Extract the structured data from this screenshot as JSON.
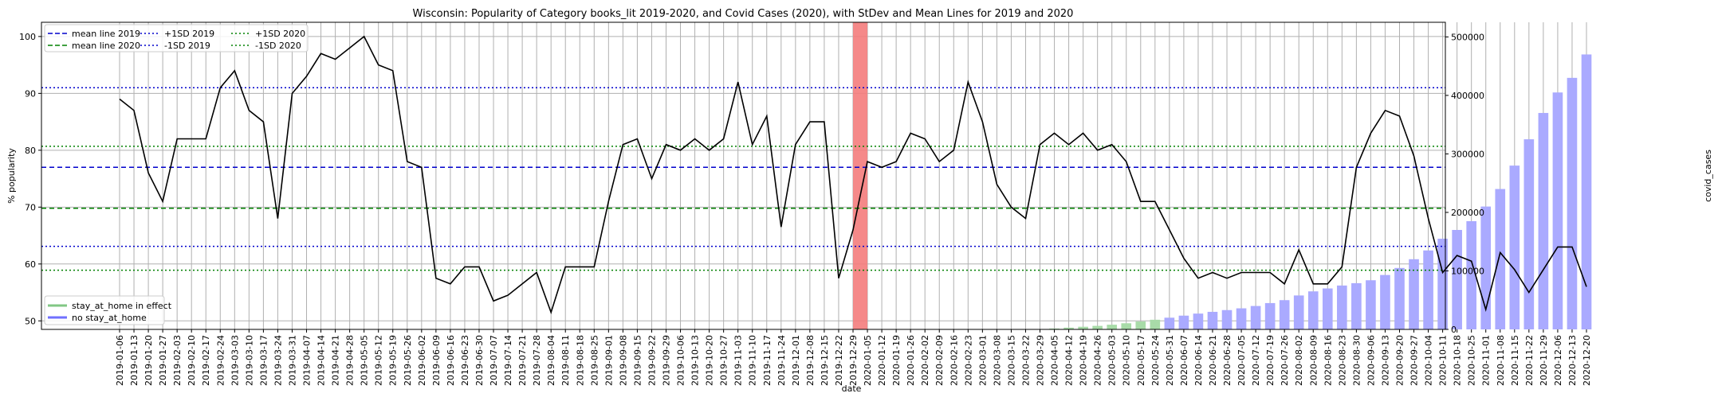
{
  "chart_data": {
    "type": "line+bar",
    "title": "Wisconsin: Popularity of Category books_lit 2019-2020, and Covid Cases (2020), with StDev and Mean Lines for 2019 and 2020",
    "xlabel": "date",
    "ylabel": "% popularity",
    "y2label": "covid_cases",
    "ylim": [
      48.5,
      102.5
    ],
    "y2lim": [
      0,
      525000
    ],
    "yticks": [
      50,
      60,
      70,
      80,
      90,
      100
    ],
    "y2ticks": [
      0,
      100000,
      200000,
      300000,
      400000,
      500000
    ],
    "grid": true,
    "dates": [
      "2019-01-06",
      "2019-01-13",
      "2019-01-20",
      "2019-01-27",
      "2019-02-03",
      "2019-02-10",
      "2019-02-17",
      "2019-02-24",
      "2019-03-03",
      "2019-03-10",
      "2019-03-17",
      "2019-03-24",
      "2019-03-31",
      "2019-04-07",
      "2019-04-14",
      "2019-04-21",
      "2019-04-28",
      "2019-05-05",
      "2019-05-12",
      "2019-05-19",
      "2019-05-26",
      "2019-06-02",
      "2019-06-09",
      "2019-06-16",
      "2019-06-23",
      "2019-06-30",
      "2019-07-07",
      "2019-07-14",
      "2019-07-21",
      "2019-07-28",
      "2019-08-04",
      "2019-08-11",
      "2019-08-18",
      "2019-08-25",
      "2019-09-01",
      "2019-09-08",
      "2019-09-15",
      "2019-09-22",
      "2019-09-29",
      "2019-10-06",
      "2019-10-13",
      "2019-10-20",
      "2019-10-27",
      "2019-11-03",
      "2019-11-10",
      "2019-11-17",
      "2019-11-24",
      "2019-12-01",
      "2019-12-08",
      "2019-12-15",
      "2019-12-22",
      "2019-12-29",
      "2020-01-05",
      "2020-01-12",
      "2020-01-19",
      "2020-01-26",
      "2020-02-02",
      "2020-02-09",
      "2020-02-16",
      "2020-02-23",
      "2020-03-01",
      "2020-03-08",
      "2020-03-15",
      "2020-03-22",
      "2020-03-29",
      "2020-04-05",
      "2020-04-12",
      "2020-04-19",
      "2020-04-26",
      "2020-05-03",
      "2020-05-10",
      "2020-05-17",
      "2020-05-24",
      "2020-05-31",
      "2020-06-07",
      "2020-06-14",
      "2020-06-21",
      "2020-06-28",
      "2020-07-05",
      "2020-07-12",
      "2020-07-19",
      "2020-07-26",
      "2020-08-02",
      "2020-08-09",
      "2020-08-16",
      "2020-08-23",
      "2020-08-30",
      "2020-09-06",
      "2020-09-13",
      "2020-09-20",
      "2020-09-27",
      "2020-10-04",
      "2020-10-11",
      "2020-10-18",
      "2020-10-25",
      "2020-11-01",
      "2020-11-08",
      "2020-11-15",
      "2020-11-22",
      "2020-11-29",
      "2020-12-06",
      "2020-12-13",
      "2020-12-20"
    ],
    "popularity": [
      89,
      87,
      76,
      71,
      82,
      82,
      82,
      91,
      94,
      87,
      85,
      68,
      90,
      93,
      97,
      96,
      98,
      100,
      95,
      94,
      78,
      77,
      57.5,
      56.5,
      59.5,
      59.5,
      53.5,
      54.5,
      56.5,
      58.5,
      51.5,
      59.5,
      59.5,
      59.5,
      71,
      81,
      82,
      75,
      81,
      80,
      82,
      80,
      82,
      92,
      81,
      86,
      66.5,
      81,
      85,
      85,
      57.5,
      66,
      78,
      77,
      78,
      83,
      82,
      78,
      80,
      92,
      85,
      74,
      70,
      68,
      81,
      83,
      81,
      83,
      80,
      81,
      78,
      71,
      71,
      66,
      61,
      57.5,
      58.5,
      57.5,
      58.5,
      58.5,
      58.5,
      56.5,
      62.5,
      56.5,
      56.5,
      59.5,
      77,
      83,
      87,
      86,
      79,
      68,
      58.5,
      61.5,
      60.5,
      52,
      62,
      59,
      55,
      59,
      63,
      63,
      56
    ],
    "covid_cases": [
      0,
      0,
      0,
      0,
      0,
      0,
      0,
      0,
      0,
      0,
      0,
      0,
      0,
      0,
      0,
      0,
      0,
      0,
      0,
      0,
      0,
      0,
      0,
      0,
      0,
      0,
      0,
      0,
      0,
      0,
      0,
      0,
      0,
      0,
      0,
      0,
      0,
      0,
      0,
      0,
      0,
      0,
      0,
      0,
      0,
      0,
      0,
      0,
      0,
      0,
      0,
      0,
      0,
      0,
      0,
      0,
      0,
      0,
      0,
      0,
      0,
      0,
      0,
      0,
      500,
      1500,
      3000,
      4500,
      6000,
      8000,
      10500,
      13500,
      16500,
      20000,
      23500,
      27000,
      30000,
      33000,
      36000,
      40000,
      45000,
      50000,
      58000,
      65000,
      70000,
      75000,
      79000,
      84000,
      93000,
      105000,
      120000,
      135000,
      155000,
      170000,
      185000,
      210000,
      240000,
      280000,
      325000,
      370000,
      405000,
      430000,
      470000
    ],
    "stay_at_home_dates": [
      "2020-03-29",
      "2020-04-05",
      "2020-04-12",
      "2020-04-19",
      "2020-04-26",
      "2020-05-03",
      "2020-05-10",
      "2020-05-17",
      "2020-05-24"
    ],
    "highlight_date": "2020-01-05",
    "reference_lines": {
      "mean_2019": 77,
      "mean_2020": 69.8,
      "plus1sd_2019": 91,
      "minus1sd_2019": 63.1,
      "plus1sd_2020": 80.7,
      "minus1sd_2020": 58.9
    },
    "legend_top": [
      {
        "label": "mean line 2019",
        "color": "#0000cc",
        "style": "dashed"
      },
      {
        "label": "mean line 2020",
        "color": "#008000",
        "style": "dashed"
      },
      {
        "label": "+1SD 2019",
        "color": "#0000cc",
        "style": "dotted"
      },
      {
        "label": "-1SD 2019",
        "color": "#0000cc",
        "style": "dotted"
      },
      {
        "label": "+1SD 2020",
        "color": "#008000",
        "style": "dotted"
      },
      {
        "label": "-1SD 2020",
        "color": "#008000",
        "style": "dotted"
      }
    ],
    "legend_bottom": [
      {
        "label": "stay_at_home in effect",
        "color": "#4caf50"
      },
      {
        "label": "no stay_at_home",
        "color": "#3333ff"
      }
    ],
    "colors": {
      "line": "#000000",
      "bar_no_stay": "#aaaaff",
      "bar_stay": "#a8dba8",
      "highlight": "#f47c7c"
    }
  }
}
